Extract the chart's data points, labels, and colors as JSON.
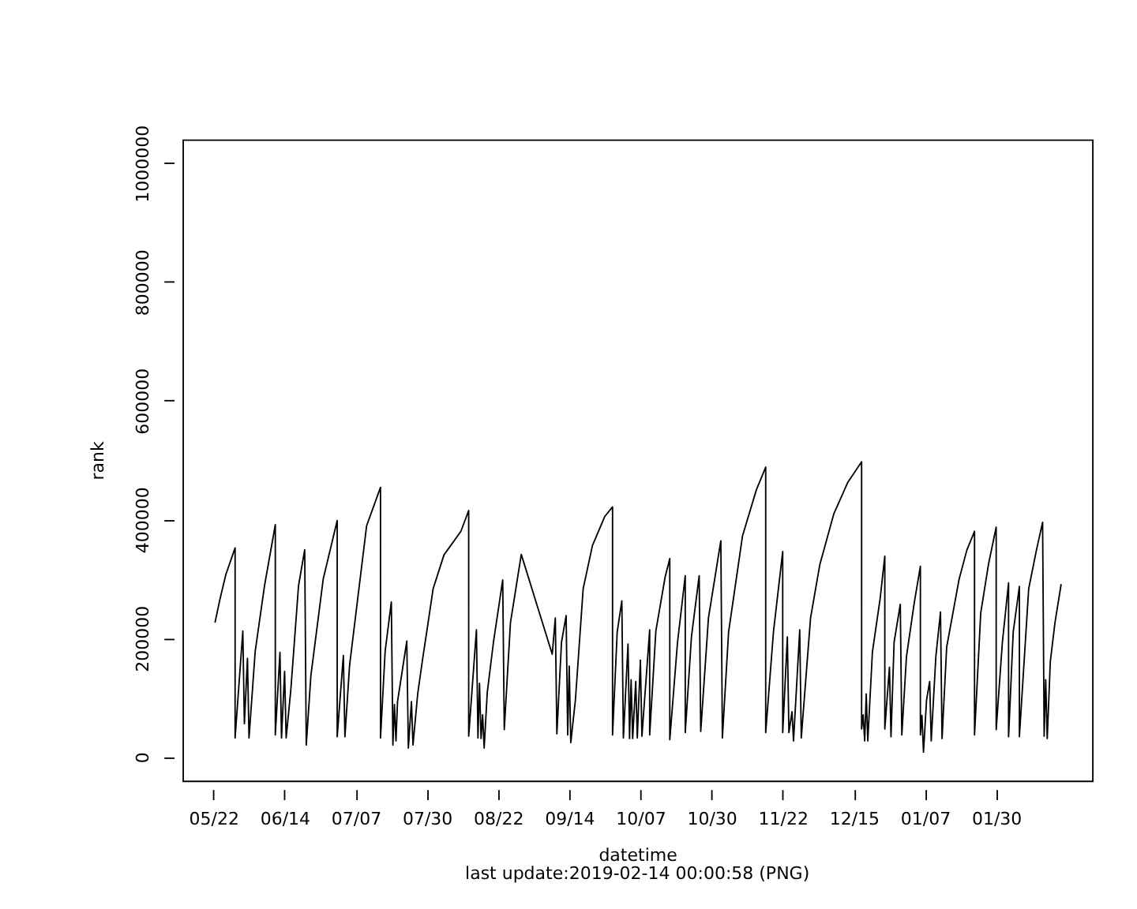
{
  "chart_data": {
    "type": "line",
    "xlabel": "datetime",
    "ylabel": "rank",
    "annotations": [
      "last update:2019-02-14 00:00:58 (PNG)"
    ],
    "x": [
      "2018-05-22T12:00",
      "2018-05-24",
      "2018-05-26",
      "2018-05-29",
      "2018-05-29",
      "2018-05-31T12:00",
      "2018-06-01",
      "2018-06-02",
      "2018-06-02T12:00",
      "2018-06-04T12:00",
      "2018-06-07T12:00",
      "2018-06-11",
      "2018-06-11",
      "2018-06-12T12:00",
      "2018-06-13",
      "2018-06-14",
      "2018-06-14T12:00",
      "2018-06-16",
      "2018-06-18T12:00",
      "2018-06-20T12:00",
      "2018-06-21",
      "2018-06-22T12:00",
      "2018-06-26T12:00",
      "2018-07-01",
      "2018-07-01",
      "2018-07-03",
      "2018-07-03T12:00",
      "2018-07-05",
      "2018-07-10T12:00",
      "2018-07-15",
      "2018-07-15",
      "2018-07-16T12:00",
      "2018-07-18T12:00",
      "2018-07-19",
      "2018-07-19T12:00",
      "2018-07-20",
      "2018-07-20T12:00",
      "2018-07-23T12:00",
      "2018-07-24",
      "2018-07-25",
      "2018-07-25T12:00",
      "2018-07-27",
      "2018-07-28T12:00",
      "2018-07-30T12:00",
      "2018-08-01",
      "2018-08-04T12:00",
      "2018-08-10",
      "2018-08-12T12:00",
      "2018-08-12T12:00",
      "2018-08-15",
      "2018-08-15T12:00",
      "2018-08-16",
      "2018-08-16T12:00",
      "2018-08-17",
      "2018-08-17T12:00",
      "2018-08-18T12:00",
      "2018-08-20T12:00",
      "2018-08-23T12:00",
      "2018-08-24",
      "2018-08-26",
      "2018-08-29T12:00",
      "2018-09-08T12:00",
      "2018-09-09T12:00",
      "2018-09-10",
      "2018-09-11T12:00",
      "2018-09-13",
      "2018-09-13T12:00",
      "2018-09-14",
      "2018-09-14T12:00",
      "2018-09-16",
      "2018-09-18T12:00",
      "2018-09-21T12:00",
      "2018-09-25T12:00",
      "2018-09-28",
      "2018-09-28",
      "2018-09-29T12:00",
      "2018-10-01",
      "2018-10-01T12:00",
      "2018-10-03",
      "2018-10-03T12:00",
      "2018-10-04",
      "2018-10-04T12:00",
      "2018-10-05T12:00",
      "2018-10-06",
      "2018-10-07",
      "2018-10-07T12:00",
      "2018-10-10",
      "2018-10-10",
      "2018-10-12",
      "2018-10-15",
      "2018-10-16T12:00",
      "2018-10-16T12:00",
      "2018-10-19",
      "2018-10-21T12:00",
      "2018-10-21T12:00",
      "2018-10-23T12:00",
      "2018-10-26",
      "2018-10-26T12:00",
      "2018-10-29",
      "2018-11-02",
      "2018-11-02T12:00",
      "2018-11-04T12:00",
      "2018-11-09",
      "2018-11-13T12:00",
      "2018-11-16T12:00",
      "2018-11-16T12:00",
      "2018-11-19",
      "2018-11-22",
      "2018-11-22",
      "2018-11-23T12:00",
      "2018-11-24",
      "2018-11-25",
      "2018-11-25T12:00",
      "2018-11-27T12:00",
      "2018-11-28",
      "2018-12-01",
      "2018-12-04",
      "2018-12-08T12:00",
      "2018-12-13",
      "2018-12-17T12:00",
      "2018-12-17T12:00",
      "2018-12-18",
      "2018-12-18T12:00",
      "2018-12-19",
      "2018-12-19T12:00",
      "2018-12-21",
      "2018-12-23T12:00",
      "2018-12-25",
      "2018-12-25",
      "2018-12-26T12:00",
      "2018-12-27",
      "2018-12-28",
      "2018-12-30",
      "2018-12-30T12:00",
      "2019-01-01",
      "2019-01-03T12:00",
      "2019-01-05T12:00",
      "2019-01-05T12:00",
      "2019-01-06",
      "2019-01-06T12:00",
      "2019-01-07T12:00",
      "2019-01-08T12:00",
      "2019-01-09",
      "2019-01-10T12:00",
      "2019-01-12",
      "2019-01-12T12:00",
      "2019-01-14",
      "2019-01-18",
      "2019-01-20T12:00",
      "2019-01-23",
      "2019-01-23",
      "2019-01-25",
      "2019-01-27T12:00",
      "2019-01-30",
      "2019-01-30",
      "2019-02-01",
      "2019-02-03",
      "2019-02-03",
      "2019-02-04T12:00",
      "2019-02-06T12:00",
      "2019-02-06T12:00",
      "2019-02-09T12:00",
      "2019-02-12",
      "2019-02-14",
      "2019-02-14T12:00",
      "2019-02-15",
      "2019-02-15T12:00",
      "2019-02-16T12:00",
      "2019-02-18",
      "2019-02-20"
    ],
    "series": [
      {
        "color": "#000000",
        "values": [
          226000,
          263000,
          307000,
          352000,
          32000,
          212000,
          56000,
          166000,
          32000,
          178000,
          288000,
          391000,
          37000,
          176000,
          32000,
          144000,
          32000,
          112000,
          288000,
          349000,
          20000,
          137000,
          300000,
          398000,
          34000,
          171000,
          34000,
          154000,
          389000,
          454000,
          32000,
          178000,
          261000,
          20000,
          88000,
          27000,
          93000,
          195000,
          15000,
          93000,
          20000,
          105000,
          161000,
          230000,
          283000,
          340000,
          380000,
          415000,
          35000,
          214000,
          32000,
          124000,
          31000,
          71000,
          15000,
          108000,
          193000,
          298000,
          46000,
          226000,
          341000,
          173000,
          234000,
          39000,
          193000,
          238000,
          37000,
          153000,
          24000,
          96000,
          283000,
          356000,
          405000,
          421000,
          37000,
          210000,
          263000,
          32000,
          190000,
          31000,
          130000,
          31000,
          127000,
          32000,
          163000,
          35000,
          214000,
          37000,
          212000,
          303000,
          334000,
          29000,
          193000,
          305000,
          41000,
          202000,
          305000,
          43000,
          234000,
          364000,
          32000,
          210000,
          372000,
          450000,
          488000,
          41000,
          210000,
          346000,
          41000,
          202000,
          41000,
          76000,
          27000,
          214000,
          32000,
          234000,
          324000,
          409000,
          462000,
          497000,
          47000,
          71000,
          27000,
          106000,
          27000,
          177000,
          267000,
          338000,
          47000,
          151000,
          34000,
          193000,
          257000,
          37000,
          169000,
          259000,
          321000,
          37000,
          70000,
          8000,
          96000,
          127000,
          27000,
          169000,
          244000,
          31000,
          185000,
          299000,
          348000,
          380000,
          37000,
          242000,
          324000,
          387000,
          46000,
          193000,
          293000,
          34000,
          210000,
          287000,
          34000,
          283000,
          348000,
          395000,
          35000,
          130000,
          31000,
          161000,
          226000,
          291000
        ]
      }
    ],
    "xlim": [
      "2018-05-12",
      "2019-03-02"
    ],
    "xticks": [
      {
        "value": "2018-05-22",
        "label": "05/22"
      },
      {
        "value": "2018-06-14",
        "label": "06/14"
      },
      {
        "value": "2018-07-07",
        "label": "07/07"
      },
      {
        "value": "2018-07-30",
        "label": "07/30"
      },
      {
        "value": "2018-08-22",
        "label": "08/22"
      },
      {
        "value": "2018-09-14",
        "label": "09/14"
      },
      {
        "value": "2018-10-07",
        "label": "10/07"
      },
      {
        "value": "2018-10-30",
        "label": "10/30"
      },
      {
        "value": "2018-11-22",
        "label": "11/22"
      },
      {
        "value": "2018-12-15",
        "label": "12/15"
      },
      {
        "value": "2019-01-07",
        "label": "01/07"
      },
      {
        "value": "2019-01-30",
        "label": "01/30"
      }
    ],
    "ylim": [
      -40000,
      1040000
    ],
    "yticks": [
      0,
      200000,
      400000,
      600000,
      800000,
      1000000
    ],
    "grid": false,
    "marker": "none",
    "line_style": "solid"
  }
}
